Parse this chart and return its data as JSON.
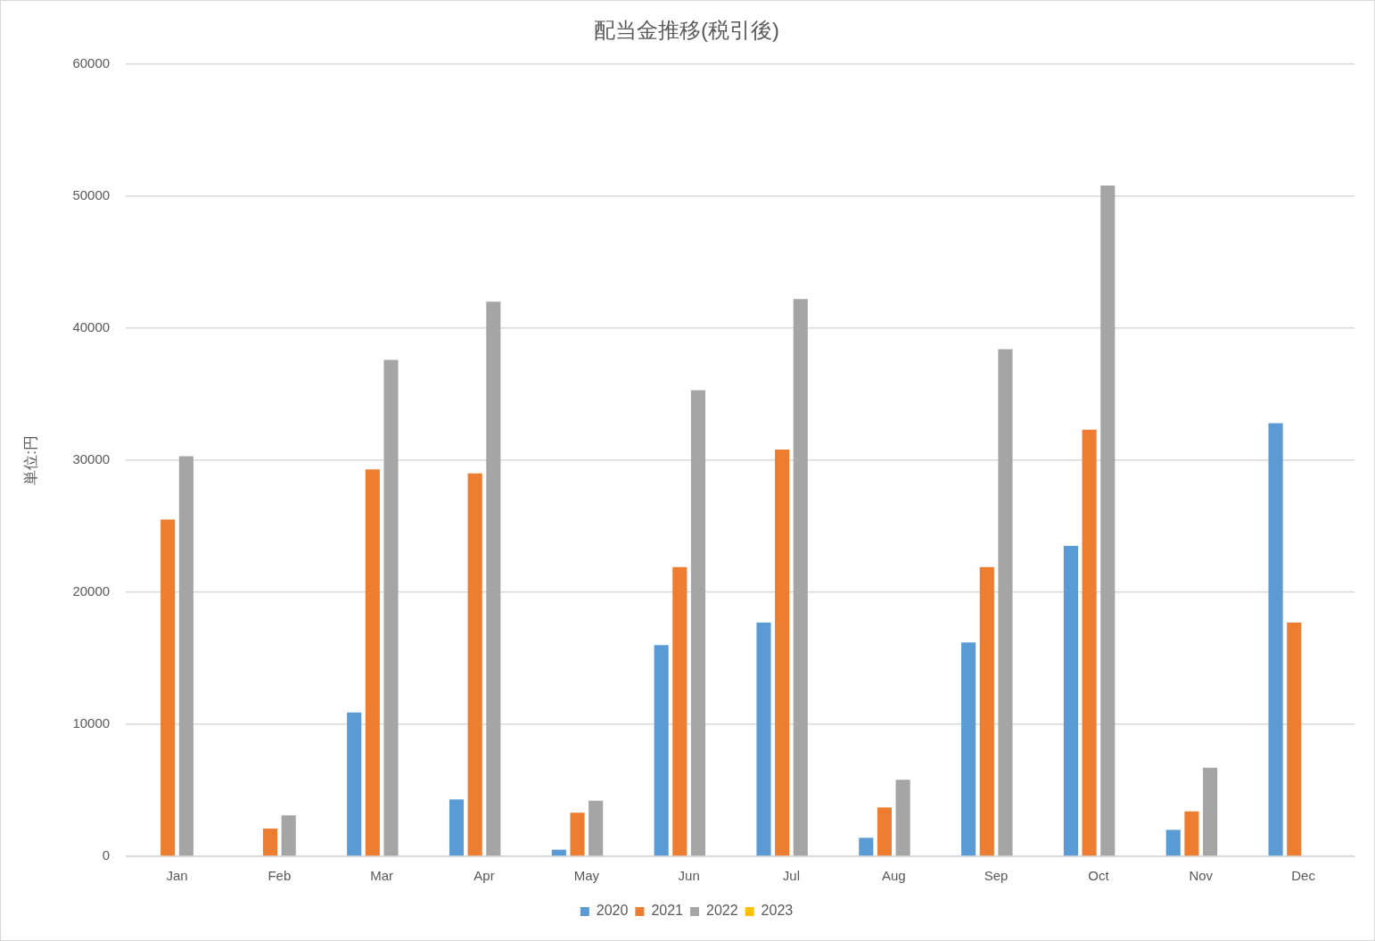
{
  "chart_data": {
    "type": "bar",
    "title": "配当金推移(税引後)",
    "ylabel": "単位:円",
    "categories": [
      "Jan",
      "Feb",
      "Mar",
      "Apr",
      "May",
      "Jun",
      "Jul",
      "Aug",
      "Sep",
      "Oct",
      "Nov",
      "Dec"
    ],
    "series": [
      {
        "name": "2020",
        "color": "#5b9bd5",
        "values": [
          null,
          null,
          10900,
          4300,
          500,
          16000,
          17700,
          1400,
          16200,
          23500,
          2000,
          32800
        ]
      },
      {
        "name": "2021",
        "color": "#ed7d31",
        "values": [
          25500,
          2100,
          29300,
          29000,
          3300,
          21900,
          30800,
          3700,
          21900,
          32300,
          3400,
          17700
        ]
      },
      {
        "name": "2022",
        "color": "#a5a5a5",
        "values": [
          30300,
          3100,
          37600,
          42000,
          4200,
          35300,
          42200,
          5800,
          38400,
          50800,
          6700,
          null
        ]
      },
      {
        "name": "2023",
        "color": "#ffc000",
        "values": [
          null,
          null,
          null,
          null,
          null,
          null,
          null,
          null,
          null,
          null,
          null,
          null
        ]
      }
    ],
    "ylim": [
      0,
      60000
    ],
    "yticks": [
      0,
      10000,
      20000,
      30000,
      40000,
      50000,
      60000
    ],
    "grid": "y",
    "legend": "bottom"
  }
}
